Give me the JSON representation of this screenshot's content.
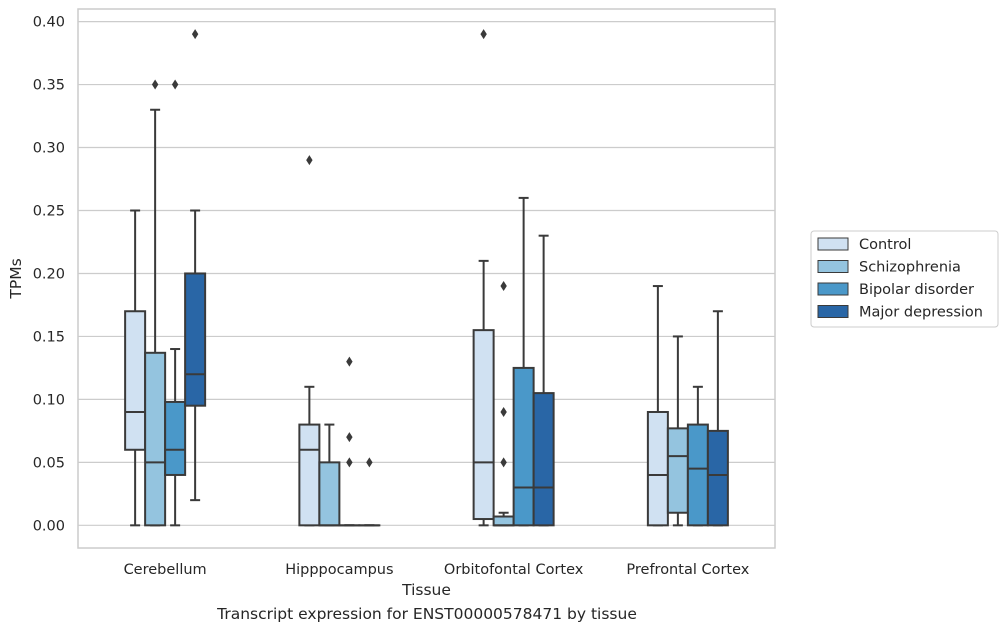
{
  "caption": "Transcript expression for ENST00000578471 by tissue",
  "chart_data": {
    "type": "box",
    "xlabel": "Tissue",
    "ylabel": "TPMs",
    "ylim": [
      -0.018,
      0.41
    ],
    "yticks": [
      0.0,
      0.05,
      0.1,
      0.15,
      0.2,
      0.25,
      0.3,
      0.35,
      0.4
    ],
    "ytick_labels": [
      "0.00",
      "0.05",
      "0.10",
      "0.15",
      "0.20",
      "0.25",
      "0.30",
      "0.35",
      "0.40"
    ],
    "grid": "horizontal",
    "legend_position": "right",
    "categories": [
      "Cerebellum",
      "Hipppocampus",
      "Orbitofontal Cortex",
      "Prefrontal Cortex"
    ],
    "series": [
      {
        "name": "Control",
        "color": "#d0e1f2",
        "boxes": [
          {
            "q1": 0.06,
            "median": 0.09,
            "q3": 0.17,
            "whisker_low": 0.0,
            "whisker_high": 0.25,
            "outliers": []
          },
          {
            "q1": 0.0,
            "median": 0.06,
            "q3": 0.08,
            "whisker_low": 0.0,
            "whisker_high": 0.11,
            "outliers": [
              0.29
            ]
          },
          {
            "q1": 0.005,
            "median": 0.05,
            "q3": 0.155,
            "whisker_low": 0.0,
            "whisker_high": 0.21,
            "outliers": [
              0.39
            ]
          },
          {
            "q1": 0.0,
            "median": 0.04,
            "q3": 0.09,
            "whisker_low": 0.0,
            "whisker_high": 0.19,
            "outliers": []
          }
        ]
      },
      {
        "name": "Schizophrenia",
        "color": "#94c4df",
        "boxes": [
          {
            "q1": 0.0,
            "median": 0.05,
            "q3": 0.137,
            "whisker_low": 0.0,
            "whisker_high": 0.33,
            "outliers": [
              0.35
            ]
          },
          {
            "q1": 0.0,
            "median": 0.0,
            "q3": 0.05,
            "whisker_low": 0.0,
            "whisker_high": 0.08,
            "outliers": []
          },
          {
            "q1": 0.0,
            "median": 0.0,
            "q3": 0.007,
            "whisker_low": 0.0,
            "whisker_high": 0.01,
            "outliers": [
              0.05,
              0.09,
              0.19
            ]
          },
          {
            "q1": 0.01,
            "median": 0.055,
            "q3": 0.077,
            "whisker_low": 0.0,
            "whisker_high": 0.15,
            "outliers": []
          }
        ]
      },
      {
        "name": "Bipolar disorder",
        "color": "#4a98c9",
        "boxes": [
          {
            "q1": 0.04,
            "median": 0.06,
            "q3": 0.098,
            "whisker_low": 0.0,
            "whisker_high": 0.14,
            "outliers": [
              0.35
            ]
          },
          {
            "q1": 0.0,
            "median": 0.0,
            "q3": 0.0,
            "whisker_low": 0.0,
            "whisker_high": 0.0,
            "outliers": [
              0.05,
              0.07,
              0.13
            ]
          },
          {
            "q1": 0.0,
            "median": 0.03,
            "q3": 0.125,
            "whisker_low": 0.0,
            "whisker_high": 0.26,
            "outliers": []
          },
          {
            "q1": 0.0,
            "median": 0.045,
            "q3": 0.08,
            "whisker_low": 0.0,
            "whisker_high": 0.11,
            "outliers": []
          }
        ]
      },
      {
        "name": "Major depression",
        "color": "#2966a6",
        "boxes": [
          {
            "q1": 0.095,
            "median": 0.12,
            "q3": 0.2,
            "whisker_low": 0.02,
            "whisker_high": 0.25,
            "outliers": [
              0.39
            ]
          },
          {
            "q1": 0.0,
            "median": 0.0,
            "q3": 0.0,
            "whisker_low": 0.0,
            "whisker_high": 0.0,
            "outliers": [
              0.05
            ]
          },
          {
            "q1": 0.0,
            "median": 0.03,
            "q3": 0.105,
            "whisker_low": 0.0,
            "whisker_high": 0.23,
            "outliers": []
          },
          {
            "q1": 0.0,
            "median": 0.04,
            "q3": 0.075,
            "whisker_low": 0.0,
            "whisker_high": 0.17,
            "outliers": []
          }
        ]
      }
    ]
  }
}
